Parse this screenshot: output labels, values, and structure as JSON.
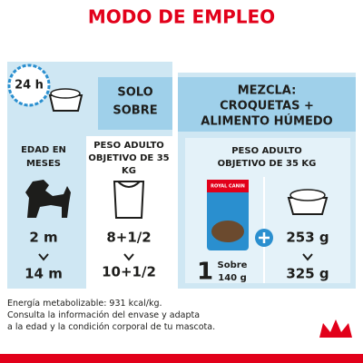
{
  "title": "MODO DE EMPLEO",
  "clock": "24 h",
  "solo_sobre": {
    "header": [
      "SOLO",
      "SOBRE"
    ],
    "age_header": [
      "EDAD EN",
      "MESES"
    ],
    "weight_header": [
      "PESO ADULTO",
      "OBJETIVO DE 35",
      "KG"
    ],
    "ages": [
      "2 m",
      "14 m"
    ],
    "amounts": [
      "8+1/2",
      "10+1/2"
    ]
  },
  "mezcla": {
    "header": [
      "MEZCLA:",
      "CROQUETAS +",
      "ALIMENTO HÚMEDO"
    ],
    "weight_header": [
      "PESO ADULTO",
      "OBJETIVO DE 35 KG"
    ],
    "pouch_brand": "ROYAL CANIN",
    "pouch_count": "1",
    "pouch_unit": "Sobre",
    "pouch_weight": "140 g",
    "kibble": [
      "253 g",
      "325 g"
    ]
  },
  "footer": [
    "Energía metabolizable: 931 kcal/kg.",
    "Consulta la información del envase y adapta",
    "a la edad y la condición corporal de tu mascota."
  ]
}
